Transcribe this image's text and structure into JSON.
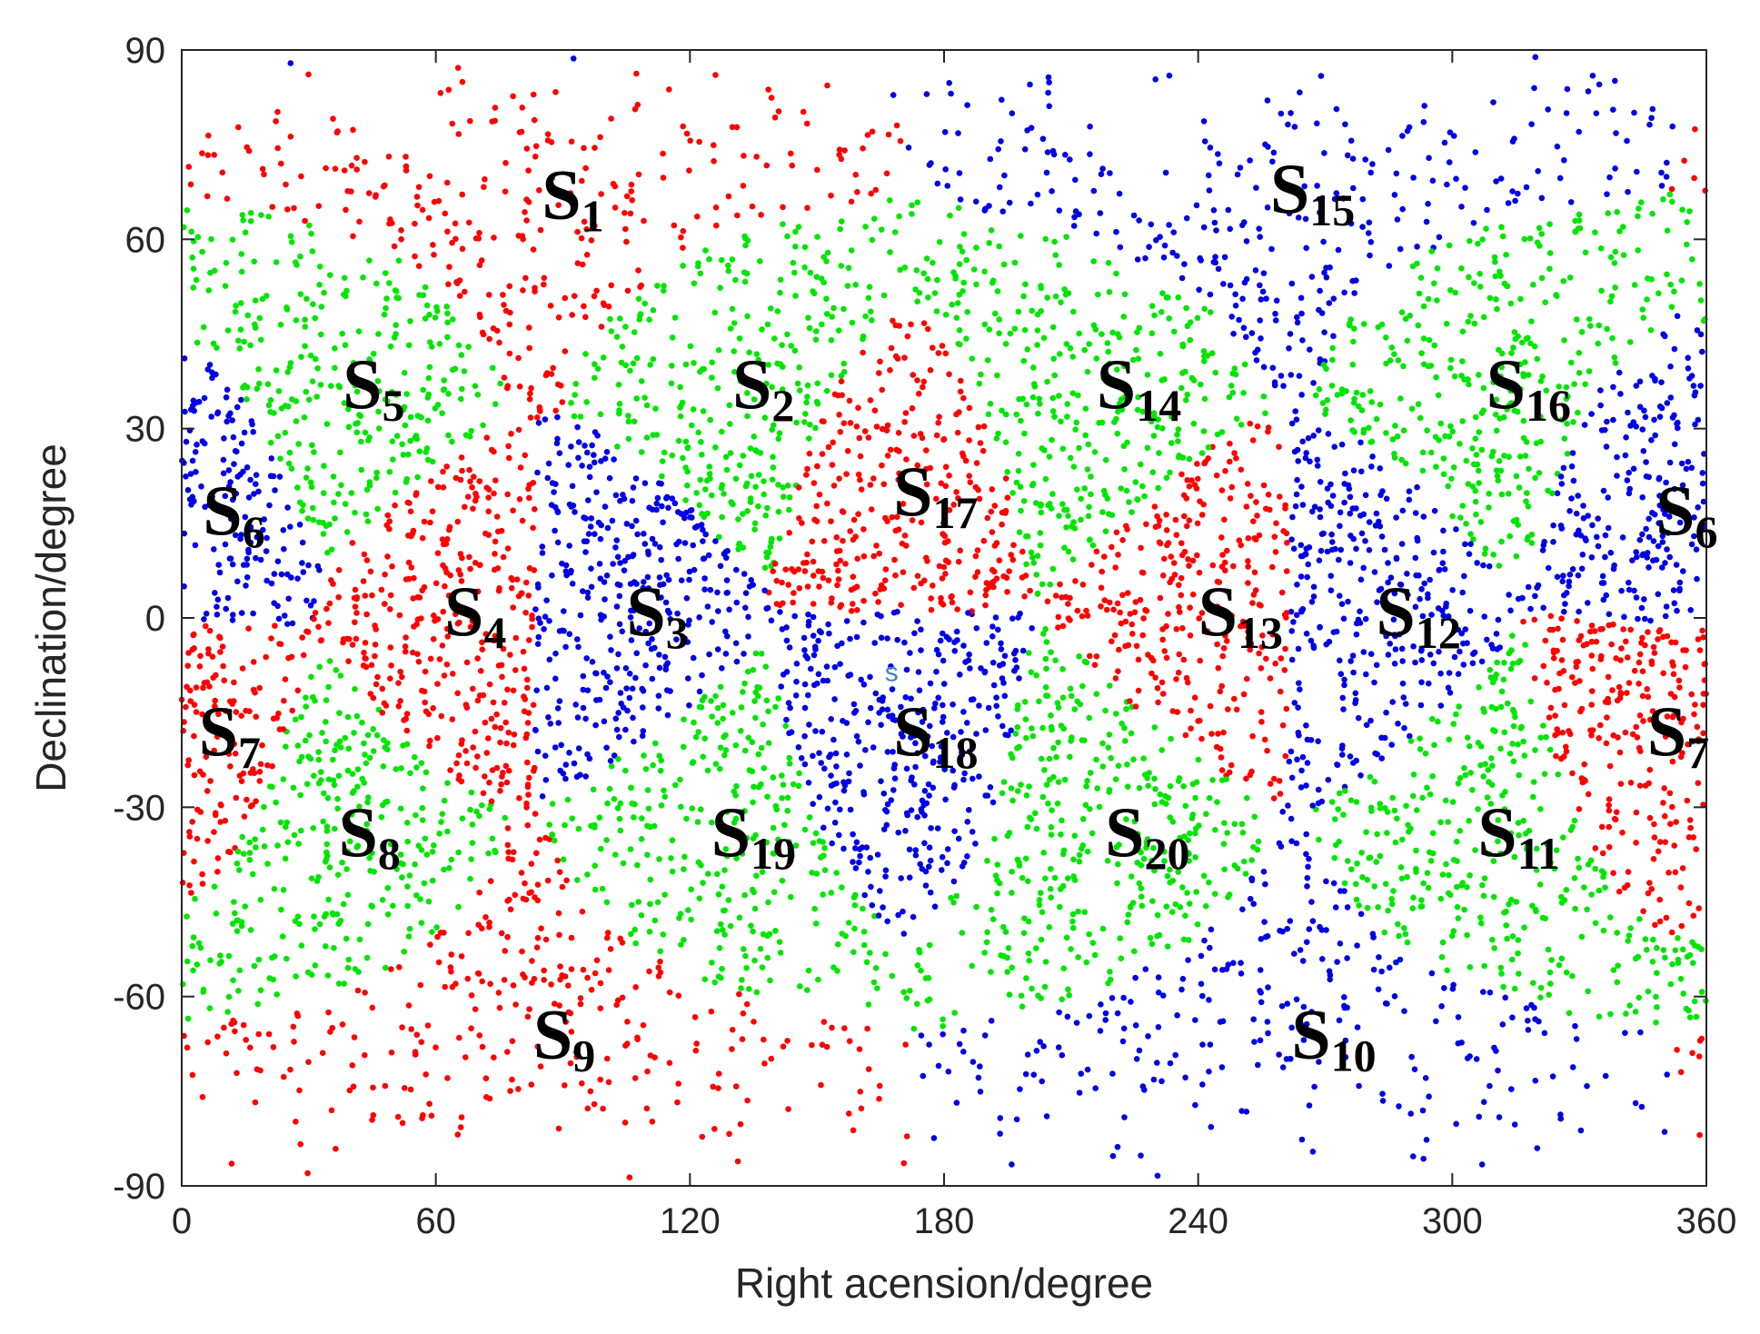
{
  "chart_data": {
    "type": "scatter",
    "xlabel": "Right acension/degree",
    "ylabel": "Declination/degree",
    "xlim": [
      0,
      360
    ],
    "ylim": [
      -90,
      90
    ],
    "xticks": [
      "0",
      "60",
      "120",
      "180",
      "240",
      "300",
      "360"
    ],
    "yticks": [
      "90",
      "60",
      "30",
      "0",
      "-30",
      "-60",
      "-90"
    ],
    "grid": false,
    "legend": "none",
    "colors": {
      "red": "#ff0000",
      "green": "#00e600",
      "blue": "#0000e6",
      "axis": "#262626"
    },
    "regions": [
      {
        "name": "S",
        "sub": "1",
        "ra": 85,
        "dec": 67,
        "color": "red"
      },
      {
        "name": "S",
        "sub": "2",
        "ra": 130,
        "dec": 37,
        "color": "green"
      },
      {
        "name": "S",
        "sub": "3",
        "ra": 105,
        "dec": 1,
        "color": "blue"
      },
      {
        "name": "S",
        "sub": "4",
        "ra": 62,
        "dec": 1,
        "color": "red"
      },
      {
        "name": "S",
        "sub": "5",
        "ra": 38,
        "dec": 37,
        "color": "green"
      },
      {
        "name": "S",
        "sub": "6",
        "ra": 5,
        "dec": 17,
        "color": "blue"
      },
      {
        "name": "S",
        "sub": "6",
        "ra": 348,
        "dec": 17,
        "color": "blue"
      },
      {
        "name": "S",
        "sub": "7",
        "ra": 4,
        "dec": -18,
        "color": "red"
      },
      {
        "name": "S",
        "sub": "7",
        "ra": 346,
        "dec": -18,
        "color": "red"
      },
      {
        "name": "S",
        "sub": "8",
        "ra": 37,
        "dec": -34,
        "color": "green"
      },
      {
        "name": "S",
        "sub": "9",
        "ra": 83,
        "dec": -66,
        "color": "red"
      },
      {
        "name": "S",
        "sub": "10",
        "ra": 262,
        "dec": -66,
        "color": "blue"
      },
      {
        "name": "S",
        "sub": "11",
        "ra": 306,
        "dec": -34,
        "color": "green"
      },
      {
        "name": "S",
        "sub": "12",
        "ra": 282,
        "dec": 1,
        "color": "blue"
      },
      {
        "name": "S",
        "sub": "13",
        "ra": 240,
        "dec": 1,
        "color": "red"
      },
      {
        "name": "S",
        "sub": "14",
        "ra": 216,
        "dec": 37,
        "color": "green"
      },
      {
        "name": "S",
        "sub": "15",
        "ra": 257,
        "dec": 68,
        "color": "blue"
      },
      {
        "name": "S",
        "sub": "16",
        "ra": 308,
        "dec": 37,
        "color": "green"
      },
      {
        "name": "S",
        "sub": "17",
        "ra": 168,
        "dec": 20,
        "color": "red"
      },
      {
        "name": "S",
        "sub": "18",
        "ra": 168,
        "dec": -18,
        "color": "blue"
      },
      {
        "name": "S",
        "sub": "19",
        "ra": 125,
        "dec": -34,
        "color": "green"
      },
      {
        "name": "S",
        "sub": "20",
        "ra": 218,
        "dec": -34,
        "color": "green"
      }
    ],
    "stray_label": {
      "text": "s",
      "ra": 166,
      "dec": -10
    }
  }
}
